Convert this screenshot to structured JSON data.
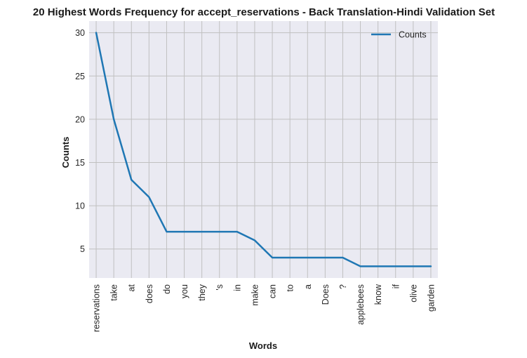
{
  "chart_data": {
    "type": "line",
    "title": "20 Highest Words Frequency for accept_reservations - Back Translation-Hindi Validation Set",
    "xlabel": "Words",
    "ylabel": "Counts",
    "categories": [
      "reservations",
      "take",
      "at",
      "does",
      "do",
      "you",
      "they",
      "'s",
      "in",
      "make",
      "can",
      "to",
      "a",
      "Does",
      "?",
      "applebees",
      "know",
      "if",
      "olive",
      "garden"
    ],
    "series": [
      {
        "name": "Counts",
        "color": "#1f77b4",
        "values": [
          30,
          20,
          13,
          11,
          7,
          7,
          7,
          7,
          7,
          6,
          4,
          4,
          4,
          4,
          4,
          3,
          3,
          3,
          3,
          3
        ]
      }
    ],
    "ylim": [
      1.65,
      31.35
    ],
    "yticks": [
      5,
      10,
      15,
      20,
      25,
      30
    ],
    "grid": true,
    "legend": "top-right",
    "style": {
      "plot_background": "#eaeaf2",
      "grid_color": "#c0c0c0"
    }
  }
}
